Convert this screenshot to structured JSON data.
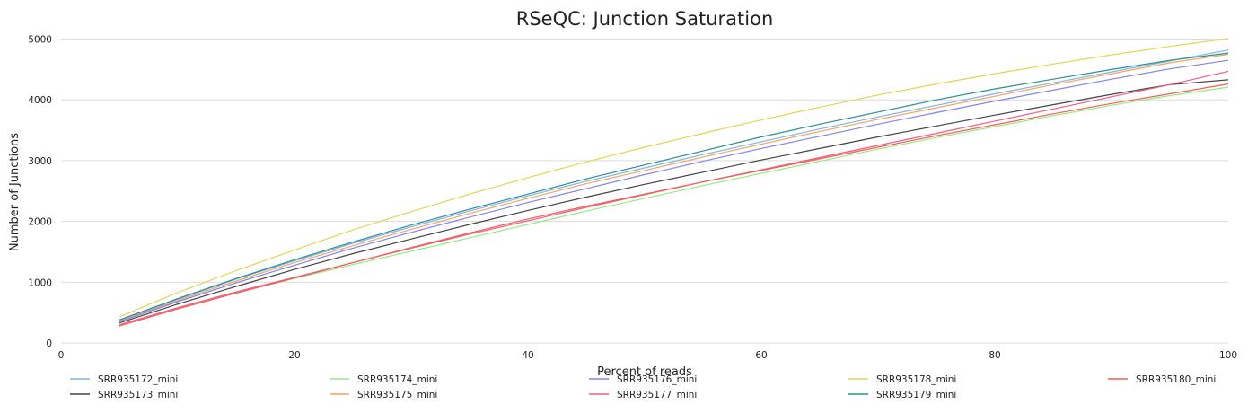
{
  "chart_data": {
    "type": "line",
    "title": "RSeQC: Junction Saturation",
    "xlabel": "Percent of reads",
    "ylabel": "Number of Junctions",
    "xlim": [
      0,
      100
    ],
    "ylim": [
      0,
      5200
    ],
    "x_ticks": [
      0,
      20,
      40,
      60,
      80,
      100
    ],
    "y_ticks": [
      0,
      1000,
      2000,
      3000,
      4000,
      5000
    ],
    "grid": "horizontal",
    "legend_position": "bottom",
    "x": [
      5,
      10,
      15,
      20,
      25,
      30,
      35,
      40,
      45,
      50,
      55,
      60,
      65,
      70,
      75,
      80,
      85,
      90,
      95,
      100
    ],
    "series": [
      {
        "name": "SRR935172_mini",
        "color": "#7cb5ec",
        "values": [
          370,
          720,
          1050,
          1350,
          1640,
          1910,
          2170,
          2420,
          2660,
          2880,
          3100,
          3310,
          3520,
          3720,
          3910,
          4100,
          4280,
          4460,
          4640,
          4820
        ]
      },
      {
        "name": "SRR935173_mini",
        "color": "#434348",
        "values": [
          330,
          640,
          930,
          1210,
          1470,
          1710,
          1950,
          2180,
          2400,
          2610,
          2810,
          3010,
          3200,
          3390,
          3570,
          3750,
          3920,
          4090,
          4250,
          4330
        ]
      },
      {
        "name": "SRR935174_mini",
        "color": "#90ed7d",
        "values": [
          290,
          570,
          830,
          1060,
          1290,
          1510,
          1730,
          1950,
          2170,
          2380,
          2590,
          2790,
          2990,
          3190,
          3380,
          3560,
          3740,
          3910,
          4070,
          4210
        ]
      },
      {
        "name": "SRR935175_mini",
        "color": "#f7a35c",
        "values": [
          360,
          700,
          1020,
          1320,
          1600,
          1870,
          2130,
          2380,
          2620,
          2840,
          3060,
          3270,
          3480,
          3680,
          3870,
          4060,
          4250,
          4430,
          4610,
          4750
        ]
      },
      {
        "name": "SRR935176_mini",
        "color": "#8085e9",
        "values": [
          350,
          680,
          990,
          1280,
          1560,
          1820,
          2070,
          2310,
          2540,
          2770,
          2990,
          3200,
          3400,
          3600,
          3790,
          3980,
          4160,
          4340,
          4510,
          4650
        ]
      },
      {
        "name": "SRR935177_mini",
        "color": "#f15c80",
        "values": [
          300,
          580,
          840,
          1080,
          1320,
          1560,
          1790,
          2010,
          2230,
          2440,
          2650,
          2850,
          3050,
          3250,
          3450,
          3650,
          3850,
          4050,
          4250,
          4470
        ]
      },
      {
        "name": "SRR935178_mini",
        "color": "#e4d354",
        "values": [
          430,
          830,
          1190,
          1530,
          1860,
          2160,
          2450,
          2720,
          2980,
          3220,
          3450,
          3670,
          3880,
          4080,
          4260,
          4430,
          4590,
          4740,
          4880,
          5010
        ]
      },
      {
        "name": "SRR935179_mini",
        "color": "#2b908f",
        "values": [
          380,
          730,
          1060,
          1370,
          1660,
          1940,
          2200,
          2450,
          2700,
          2930,
          3160,
          3390,
          3600,
          3800,
          4000,
          4180,
          4340,
          4500,
          4650,
          4770
        ]
      },
      {
        "name": "SRR935180_mini",
        "color": "#f45b5b",
        "values": [
          280,
          560,
          820,
          1070,
          1320,
          1570,
          1810,
          2040,
          2250,
          2450,
          2650,
          2840,
          3030,
          3220,
          3410,
          3590,
          3770,
          3940,
          4100,
          4260
        ]
      }
    ]
  }
}
